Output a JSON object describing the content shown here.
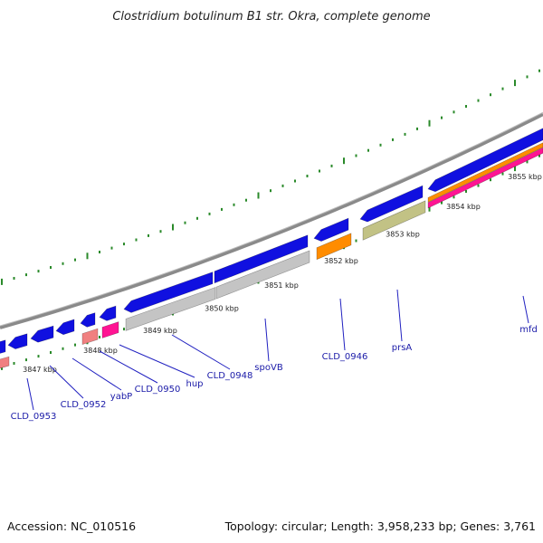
{
  "header": {
    "title": "Clostridium botulinum B1 str. Okra, complete genome"
  },
  "footer": {
    "accession": "Accession: NC_010516",
    "topology": "Topology: circular; Length: 3,958,233 bp; Genes: 3,761"
  },
  "kbp_labels": [
    "3847 kbp",
    "3848 kbp",
    "3849 kbp",
    "3850 kbp",
    "3851 kbp",
    "3852 kbp",
    "3853 kbp",
    "3854 kbp",
    "3855 kbp"
  ],
  "gene_labels": [
    "CLD_0953",
    "CLD_0952",
    "yabP",
    "CLD_0950",
    "hup",
    "CLD_0948",
    "spoVB",
    "CLD_0946",
    "prsA",
    "mfd"
  ],
  "colors": {
    "background": "#ffffff",
    "backbone": "#8a8a8a",
    "cds_forward": "#1010e0",
    "gene_gray": "#c4c4c4",
    "gene_orange": "#ff8c00",
    "gene_olive": "#c2c285",
    "gene_pink": "#ff1493",
    "gene_salmon": "#f08080",
    "ticks": "#2a8a2a",
    "label_line": "#2020c0",
    "label_text": "#1a1aa8"
  }
}
